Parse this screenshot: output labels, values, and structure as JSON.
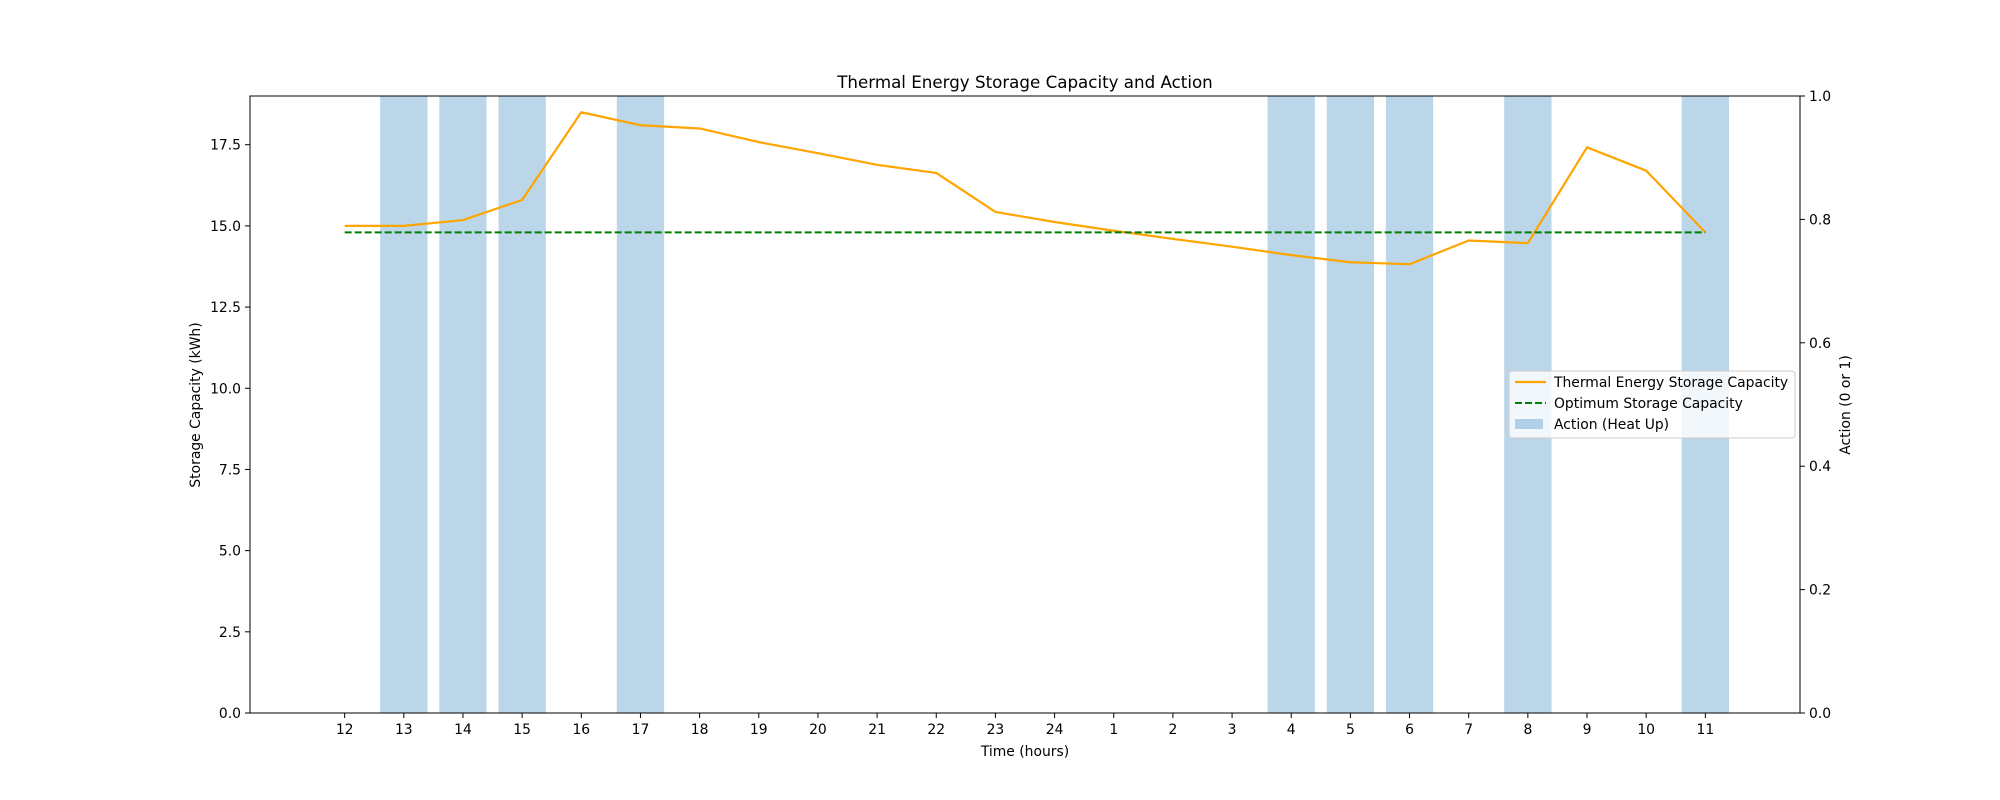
{
  "chart_data": {
    "type": "line",
    "title": "Thermal Energy Storage Capacity and Action",
    "xlabel": "Time (hours)",
    "ylabel": "Storage Capacity (kWh)",
    "y2label": "Action (0 or 1)",
    "categories": [
      "12",
      "13",
      "14",
      "15",
      "16",
      "17",
      "18",
      "19",
      "20",
      "21",
      "22",
      "23",
      "24",
      "1",
      "2",
      "3",
      "4",
      "5",
      "6",
      "7",
      "8",
      "9",
      "10",
      "11"
    ],
    "series": [
      {
        "name": "Thermal Energy Storage Capacity",
        "type": "line",
        "color": "#ffa500",
        "values": [
          15.0,
          15.0,
          15.18,
          15.8,
          18.5,
          18.1,
          18.0,
          17.58,
          17.24,
          16.88,
          16.63,
          15.43,
          15.12,
          14.85,
          14.6,
          14.36,
          14.1,
          13.88,
          13.82,
          14.55,
          14.47,
          17.42,
          16.7,
          14.8
        ]
      },
      {
        "name": "Optimum Storage Capacity",
        "type": "line",
        "style": "dashed",
        "color": "#008000",
        "values": [
          14.8,
          14.8,
          14.8,
          14.8,
          14.8,
          14.8,
          14.8,
          14.8,
          14.8,
          14.8,
          14.8,
          14.8,
          14.8,
          14.8,
          14.8,
          14.8,
          14.8,
          14.8,
          14.8,
          14.8,
          14.8,
          14.8,
          14.8,
          14.8
        ]
      },
      {
        "name": "Action (Heat Up)",
        "type": "bar",
        "axis": "right",
        "color": "#1f77b4",
        "opacity": 0.3,
        "values": [
          0,
          1,
          1,
          1,
          0,
          1,
          0,
          0,
          0,
          0,
          0,
          0,
          0,
          0,
          0,
          0,
          1,
          1,
          1,
          0,
          1,
          0,
          0,
          1
        ]
      }
    ],
    "ylim": [
      0,
      19.0
    ],
    "yticks": [
      0.0,
      2.5,
      5.0,
      7.5,
      10.0,
      12.5,
      15.0,
      17.5
    ],
    "ytick_labels": [
      "0.0",
      "2.5",
      "5.0",
      "7.5",
      "10.0",
      "12.5",
      "15.0",
      "17.5"
    ],
    "y2lim": [
      0,
      1
    ],
    "y2ticks": [
      0.0,
      0.2,
      0.4,
      0.6,
      0.8,
      1.0
    ],
    "y2tick_labels": [
      "0.0",
      "0.2",
      "0.4",
      "0.6",
      "0.8",
      "1.0"
    ],
    "xlim": [
      -1.6,
      24.6
    ],
    "grid": false,
    "legend": {
      "position": "center-right",
      "entries": [
        "Thermal Energy Storage Capacity",
        "Optimum Storage Capacity",
        "Action (Heat Up)"
      ]
    }
  }
}
